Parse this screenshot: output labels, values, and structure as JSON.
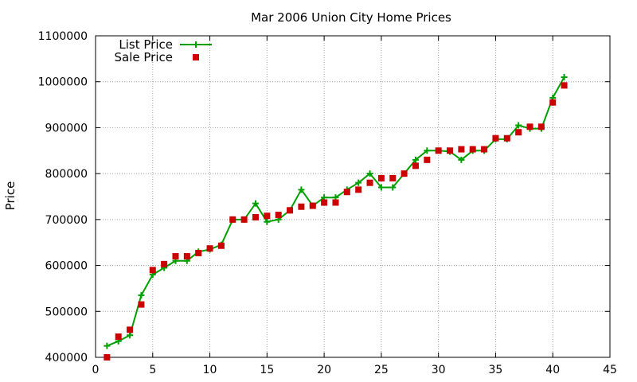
{
  "chart_data": {
    "type": "line",
    "title": "Mar 2006 Union City Home Prices",
    "xlabel": "",
    "ylabel": "Price",
    "xlim": [
      0,
      45
    ],
    "ylim": [
      400000,
      1100000
    ],
    "xticks": [
      0,
      5,
      10,
      15,
      20,
      25,
      30,
      35,
      40,
      45
    ],
    "yticks": [
      400000,
      500000,
      600000,
      700000,
      800000,
      900000,
      1000000,
      1100000
    ],
    "grid": true,
    "legend_position": "top-left",
    "series": [
      {
        "name": "List Price",
        "style": "line-with-plus-markers",
        "color": "#00a000",
        "x": [
          1,
          2,
          3,
          4,
          5,
          6,
          7,
          8,
          9,
          10,
          11,
          12,
          13,
          14,
          15,
          16,
          17,
          18,
          19,
          20,
          21,
          22,
          23,
          24,
          25,
          26,
          27,
          28,
          29,
          30,
          31,
          32,
          33,
          34,
          35,
          36,
          37,
          38,
          39,
          40,
          41
        ],
        "y": [
          425000,
          435000,
          448000,
          535000,
          580000,
          595000,
          610000,
          610000,
          630000,
          635000,
          645000,
          700000,
          700000,
          735000,
          695000,
          700000,
          720000,
          765000,
          730000,
          748000,
          748000,
          765000,
          780000,
          800000,
          770000,
          770000,
          800000,
          830000,
          850000,
          850000,
          848000,
          830000,
          850000,
          850000,
          875000,
          875000,
          905000,
          898000,
          898000,
          965000,
          1010000
        ]
      },
      {
        "name": "Sale Price",
        "style": "square-markers",
        "color": "#cc0000",
        "x": [
          1,
          2,
          3,
          4,
          5,
          6,
          7,
          8,
          9,
          10,
          11,
          12,
          13,
          14,
          15,
          16,
          17,
          18,
          19,
          20,
          21,
          22,
          23,
          24,
          25,
          26,
          27,
          28,
          29,
          30,
          31,
          32,
          33,
          34,
          35,
          36,
          37,
          38,
          39,
          40,
          41
        ],
        "y": [
          400000,
          445000,
          460000,
          515000,
          590000,
          603000,
          620000,
          620000,
          627000,
          637000,
          643000,
          700000,
          700000,
          705000,
          708000,
          710000,
          720000,
          728000,
          730000,
          737000,
          737000,
          760000,
          765000,
          780000,
          790000,
          790000,
          800000,
          817000,
          830000,
          850000,
          850000,
          853000,
          853000,
          853000,
          877000,
          877000,
          890000,
          902000,
          902000,
          955000,
          992000
        ]
      }
    ]
  }
}
